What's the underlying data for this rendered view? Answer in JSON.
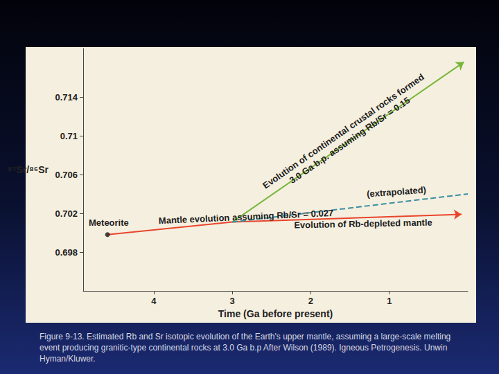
{
  "chart_data": {
    "type": "line",
    "xlabel": "Time (Ga before present)",
    "ylabel": "⁸⁷Sr/⁸⁶Sr",
    "xlim": [
      4.9,
      0
    ],
    "xticks": [
      4,
      3,
      2,
      1
    ],
    "ylim": [
      0.694,
      0.719
    ],
    "yticks": [
      0.698,
      0.702,
      0.706,
      0.71,
      0.714
    ],
    "grid": false,
    "caption": "Figure 9-13. Estimated Rb and Sr isotopic evolution of the Earth's upper mantle, assuming a large-scale melting event producing granitic-type continental rocks at 3.0 Ga b.p After Wilson (1989). Igneous Petrogenesis. Unwin Hyman/Kluwer.",
    "series": [
      {
        "name": "Mantle evolution assuming Rb/Sr = 0.027",
        "type": "line",
        "color": "#e8452c",
        "x": [
          4.59,
          3.0
        ],
        "values": [
          0.6998,
          0.7011
        ],
        "line_style": "solid",
        "marker": "none"
      },
      {
        "name": "Evolution of Rb-depleted mantle",
        "type": "line",
        "color": "#e8452c",
        "x": [
          3.0,
          0.08
        ],
        "values": [
          0.7011,
          0.7019
        ],
        "line_style": "solid",
        "marker": "arrow"
      },
      {
        "name": "Evolution of continental crustal rocks formed\n3.0 Ga b.p. assuming Rb/Sr = 0.15",
        "type": "line",
        "color": "#78b63a",
        "x": [
          3.0,
          0.05
        ],
        "values": [
          0.7011,
          0.7176
        ],
        "line_style": "solid",
        "marker": "arrow"
      },
      {
        "name": "(extrapolated)",
        "type": "line",
        "color": "#3a8fa3",
        "x": [
          3.0,
          0.0
        ],
        "values": [
          0.7011,
          0.704
        ],
        "line_style": "dashed",
        "marker": "none"
      },
      {
        "name": "Meteorite",
        "type": "scatter",
        "color": "#1a1a1a",
        "x": [
          4.59
        ],
        "values": [
          0.6998
        ],
        "marker": "circle"
      }
    ]
  }
}
